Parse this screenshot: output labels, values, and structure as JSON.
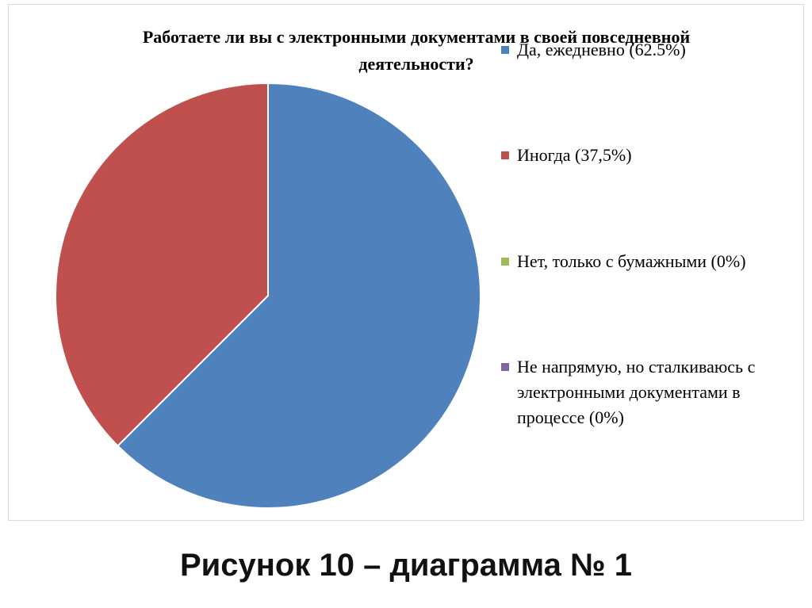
{
  "chart_data": {
    "type": "pie",
    "title": "Работаете ли вы с электронными документами в своей повседневной деятельности?",
    "categories": [
      "Да, ежедневно (62.5%)",
      "Иногда (37,5%)",
      "Нет, только с бумажными (0%)",
      "Не напрямую, но сталкиваюсь с электронными документами в процессе (0%)"
    ],
    "values": [
      62.5,
      37.5,
      0,
      0
    ],
    "colors": [
      "#4f81bd",
      "#c0504d",
      "#9bbb59",
      "#8064a2"
    ],
    "legend": "right"
  },
  "caption": "Рисунок 10 – диаграмма № 1"
}
